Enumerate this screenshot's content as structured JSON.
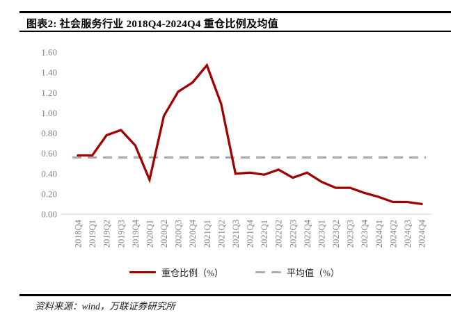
{
  "header": {
    "title": "图表2: 社会服务行业 2018Q4-2024Q4 重仓比例及均值"
  },
  "legend": {
    "series_label": "重仓比例（%）",
    "average_label": "平均值（%）"
  },
  "footer": {
    "source": "资料来源：wind，万联证券研究所"
  },
  "colors": {
    "line": "#A00000",
    "average": "#ACACAC",
    "axis_line": "#D9D9D9",
    "tick_text": "#828282"
  },
  "chart_data": {
    "type": "line",
    "title": "图表2: 社会服务行业 2018Q4-2024Q4 重仓比例及均值",
    "categories": [
      "2018Q4",
      "2019Q1",
      "2019Q2",
      "2019Q3",
      "2019Q4",
      "2020Q1",
      "2020Q2",
      "2020Q3",
      "2020Q4",
      "2021Q1",
      "2021Q2",
      "2021Q3",
      "2021Q4",
      "2022Q1",
      "2022Q2",
      "2022Q3",
      "2022Q4",
      "2023Q1",
      "2023Q2",
      "2023Q3",
      "2023Q4",
      "2024Q1",
      "2024Q2",
      "2024Q3",
      "2024Q4"
    ],
    "series": [
      {
        "name": "重仓比例（%）",
        "style": "solid",
        "values": [
          0.58,
          0.58,
          0.78,
          0.83,
          0.68,
          0.34,
          0.97,
          1.21,
          1.3,
          1.47,
          1.09,
          0.4,
          0.41,
          0.39,
          0.44,
          0.36,
          0.41,
          0.32,
          0.26,
          0.26,
          0.21,
          0.17,
          0.12,
          0.12,
          0.1
        ]
      },
      {
        "name": "平均值（%）",
        "style": "dashed-constant",
        "value": 0.56
      }
    ],
    "ylim": [
      0,
      1.6
    ],
    "yticks": [
      {
        "label": "0.00",
        "value": 0.0
      },
      {
        "label": "0.20",
        "value": 0.2
      },
      {
        "label": "0.40",
        "value": 0.4
      },
      {
        "label": "0.60",
        "value": 0.6
      },
      {
        "label": "0.80",
        "value": 0.8
      },
      {
        "label": "1.00",
        "value": 1.0
      },
      {
        "label": "1.20",
        "value": 1.2
      },
      {
        "label": "1.40",
        "value": 1.4
      },
      {
        "label": "1.60",
        "value": 1.6
      }
    ],
    "grid": false,
    "legend_position": "bottom",
    "x_tick_rotation": -90
  }
}
